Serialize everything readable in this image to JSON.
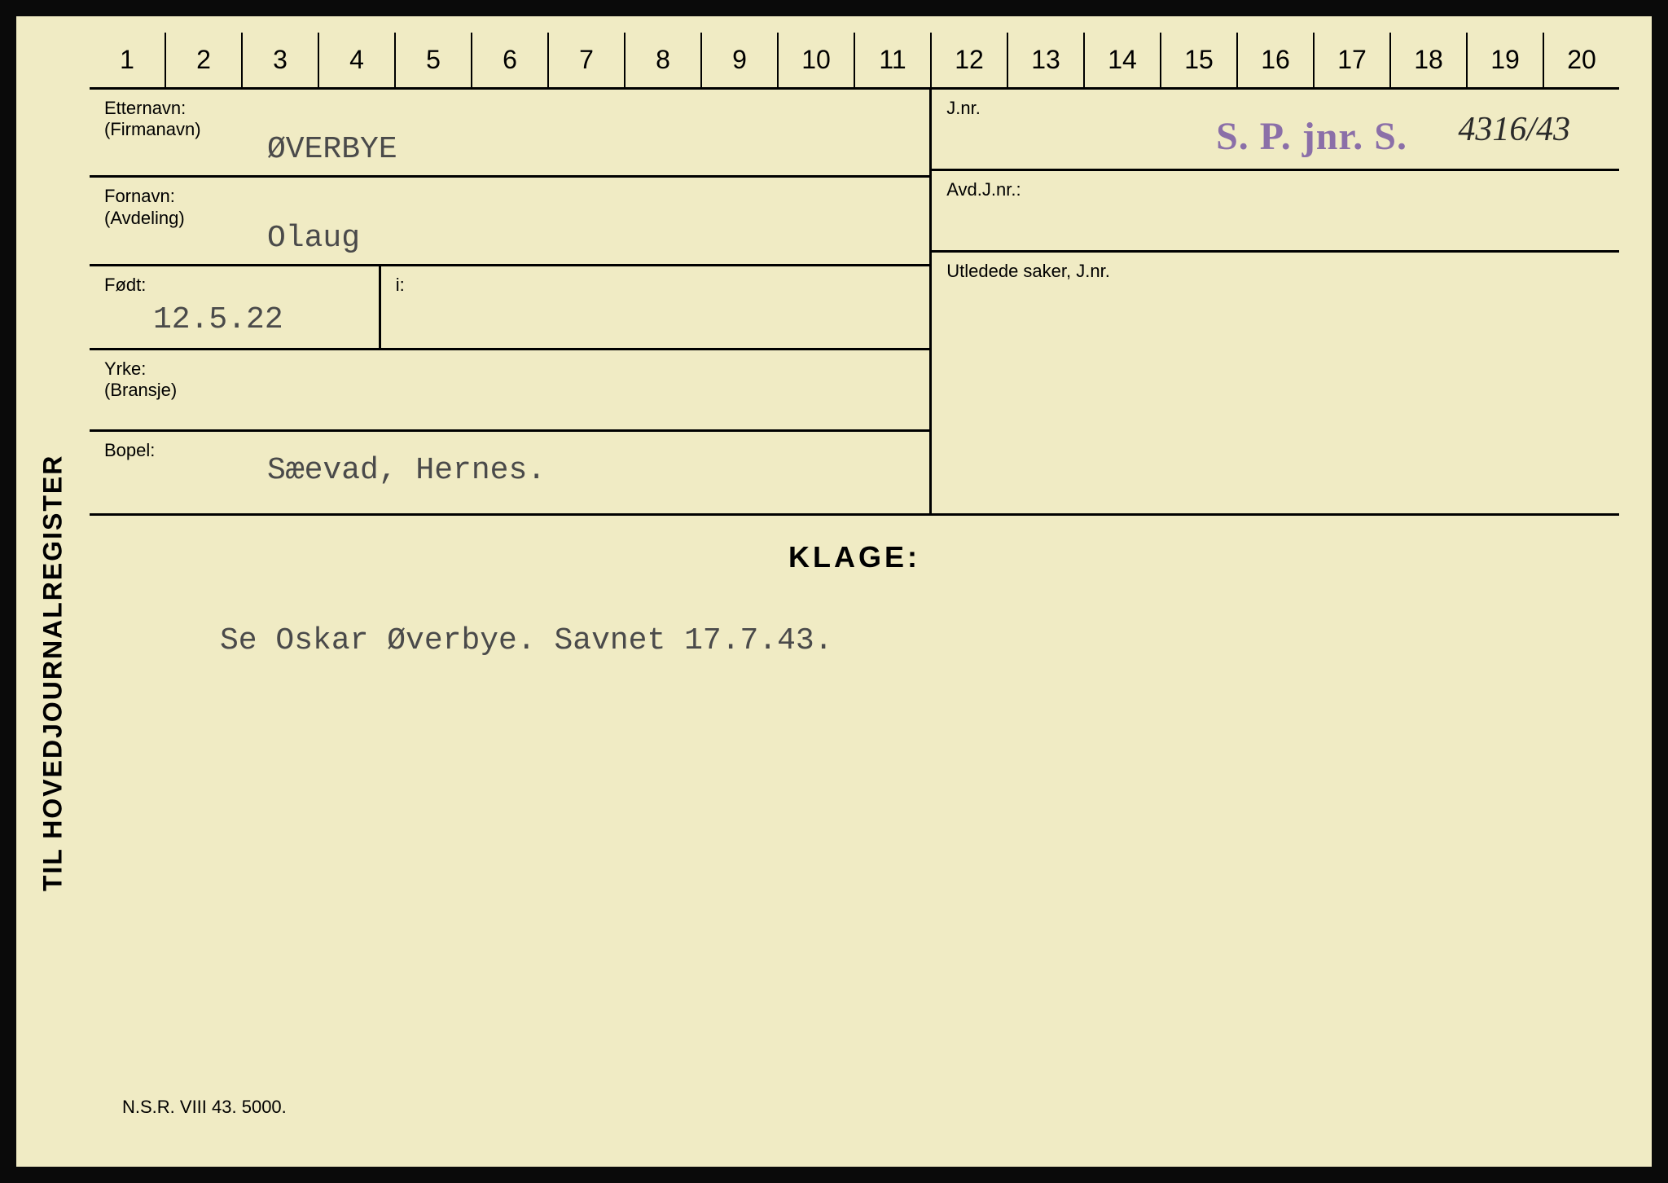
{
  "card": {
    "background_color": "#f0ebc4",
    "border_color": "#000000",
    "vertical_label": "TIL HOVEDJOURNALREGISTER",
    "ruler": {
      "numbers": [
        "1",
        "2",
        "3",
        "4",
        "5",
        "6",
        "7",
        "8",
        "9",
        "10",
        "11",
        "12",
        "13",
        "14",
        "15",
        "16",
        "17",
        "18",
        "19",
        "20"
      ]
    },
    "fields": {
      "etternavn": {
        "label": "Etternavn:",
        "sublabel": "(Firmanavn)",
        "value": "ØVERBYE"
      },
      "fornavn": {
        "label": "Fornavn:",
        "sublabel": "(Avdeling)",
        "value": "Olaug"
      },
      "fodt": {
        "label": "Født:",
        "value": "12.5.22"
      },
      "i": {
        "label": "i:"
      },
      "yrke": {
        "label": "Yrke:",
        "sublabel": "(Bransje)"
      },
      "bopel": {
        "label": "Bopel:",
        "value": "Sæevad, Hernes."
      },
      "jnr": {
        "label": "J.nr.",
        "stamp": "S. P. jnr. S.",
        "handwritten": "4316/43"
      },
      "avd_jnr": {
        "label": "Avd.J.nr.:"
      },
      "utledede": {
        "label": "Utledede saker, J.nr."
      }
    },
    "klage": {
      "title": "KLAGE:",
      "text": "Se Oskar Øverbye.  Savnet 17.7.43."
    },
    "footer": "N.S.R. VIII 43. 5000.",
    "colors": {
      "stamp_color": "#8b6fa8",
      "typewriter_color": "#4a4a4a"
    },
    "fonts": {
      "label_size": 22,
      "value_size": 38,
      "title_size": 36,
      "ruler_size": 32
    }
  }
}
